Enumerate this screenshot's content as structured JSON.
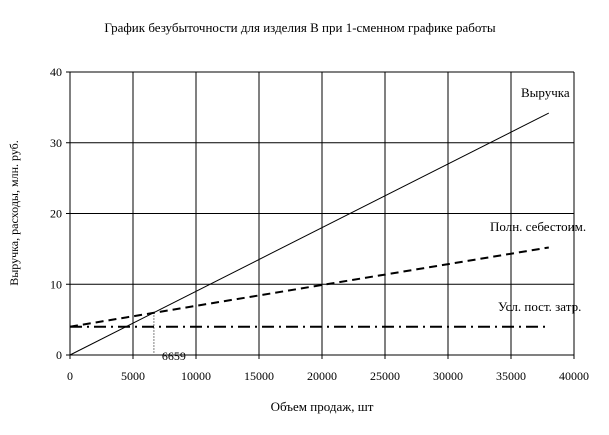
{
  "chart_data": {
    "type": "line",
    "title": "График безубыточности для изделия В при 1-сменном графике работы",
    "xlabel": "Объем продаж, шт",
    "ylabel": "Выручка, расходы, млн. руб.",
    "xlim": [
      0,
      40000
    ],
    "ylim": [
      0,
      40
    ],
    "x_ticks": [
      0,
      5000,
      10000,
      15000,
      20000,
      25000,
      30000,
      35000,
      40000
    ],
    "y_ticks": [
      0,
      10,
      20,
      30,
      40
    ],
    "grid": true,
    "series": [
      {
        "name": "Выручка",
        "style": "solid",
        "points": [
          [
            0,
            0
          ],
          [
            38000,
            34.2
          ]
        ]
      },
      {
        "name": "Полн. себестоим.",
        "style": "dashed",
        "points": [
          [
            0,
            4.0
          ],
          [
            38000,
            15.2
          ]
        ]
      },
      {
        "name": "Усл. пост. затр.",
        "style": "dashdot",
        "points": [
          [
            0,
            4.0
          ],
          [
            38000,
            4.0
          ]
        ]
      }
    ],
    "annotations": [
      {
        "label": "6659",
        "x": 6659,
        "y": 6.0
      }
    ]
  }
}
